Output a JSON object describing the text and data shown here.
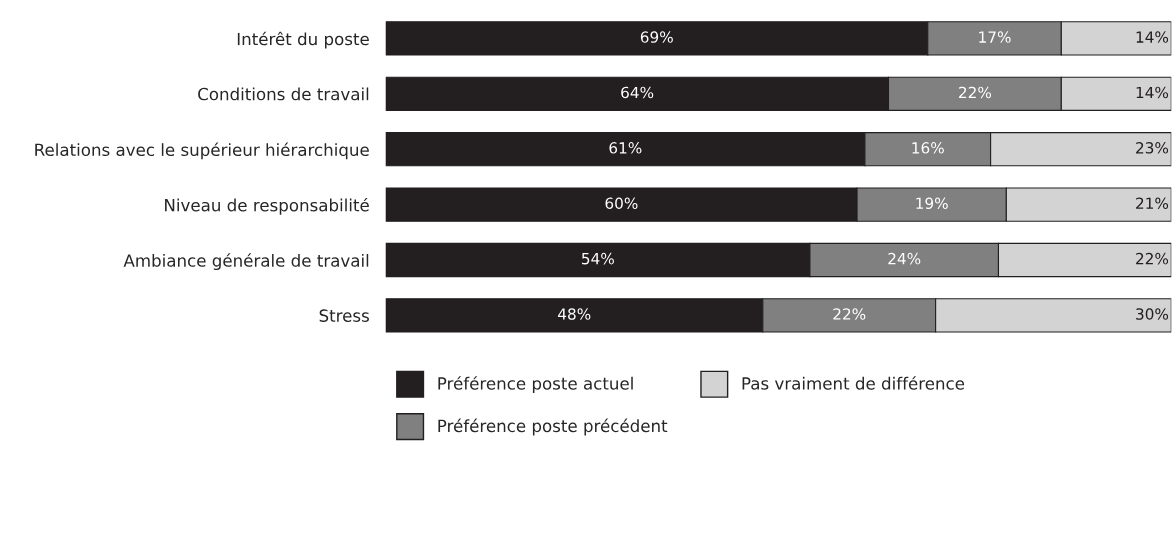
{
  "chart_data": {
    "type": "bar",
    "orientation": "horizontal",
    "stacked": true,
    "categories": [
      "Intérêt du poste",
      "Conditions de travail",
      "Relations avec le supérieur hiérarchique",
      "Niveau de responsabilité",
      "Ambiance générale de travail",
      "Stress"
    ],
    "series": [
      {
        "name": "Préférence poste actuel",
        "color": "#231f20",
        "values": [
          69,
          64,
          61,
          60,
          54,
          48
        ],
        "value_labels": [
          "69%",
          "64%",
          "61%",
          "60%",
          "54%",
          "48%"
        ]
      },
      {
        "name": "Préférence poste précédent",
        "color": "#808080",
        "values": [
          17,
          22,
          16,
          19,
          24,
          22
        ],
        "value_labels": [
          "17%",
          "22%",
          "16%",
          "19%",
          "24%",
          "22%"
        ]
      },
      {
        "name": "Pas vraiment de différence",
        "color": "#d3d3d3",
        "values": [
          14,
          14,
          23,
          21,
          22,
          30
        ],
        "value_labels": [
          "14%",
          "14%",
          "23%",
          "21%",
          "22%",
          "30%"
        ]
      }
    ],
    "xlim": [
      0,
      100
    ],
    "tick_labels": "y",
    "grid": false,
    "legend": "bottom"
  }
}
